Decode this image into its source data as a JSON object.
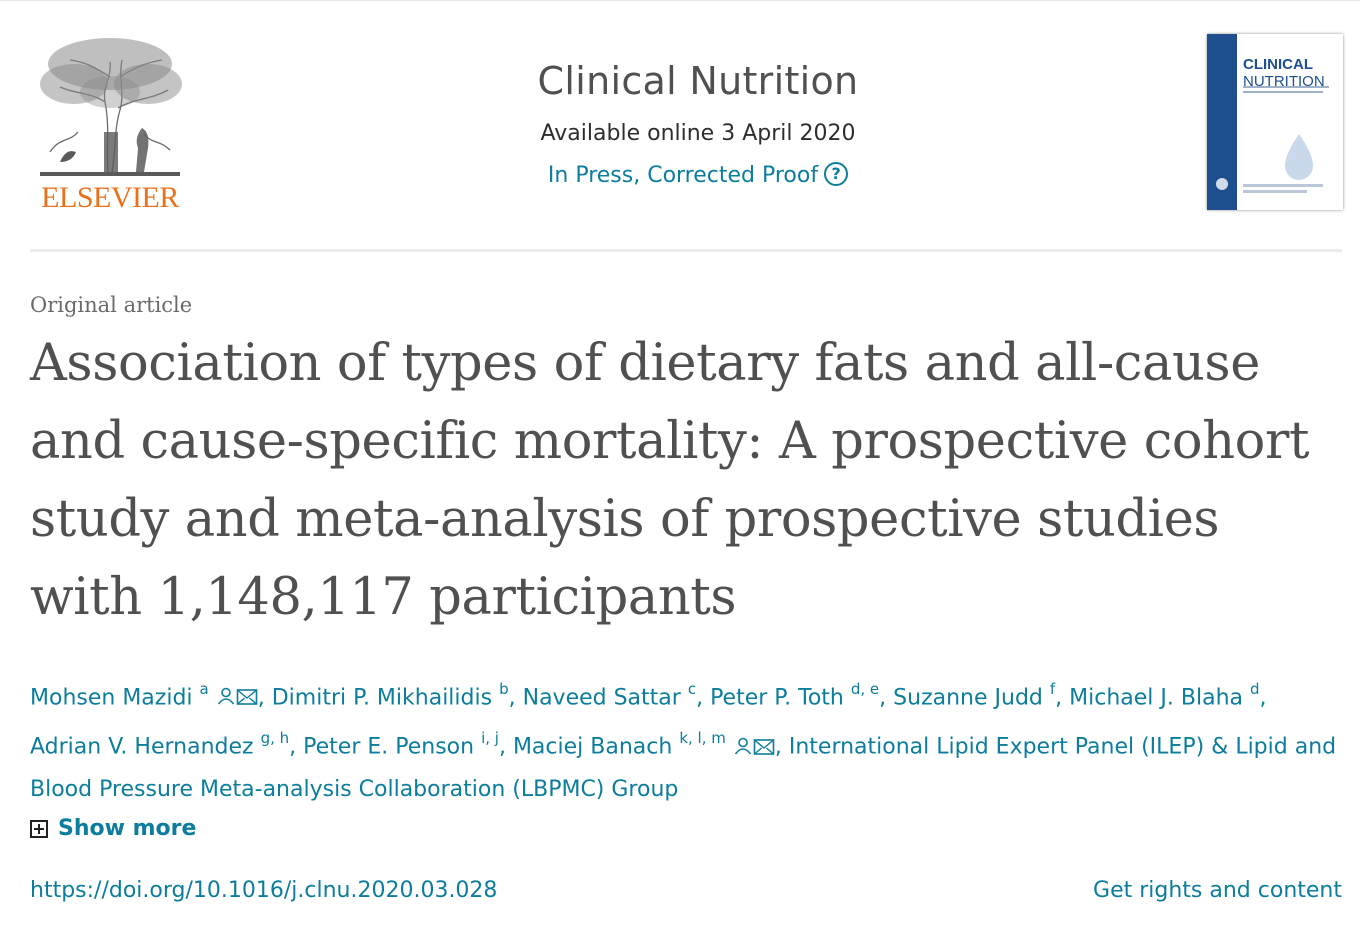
{
  "publisher": {
    "logo_text": "ELSEVIER",
    "logo_color": "#e9711c"
  },
  "journal": {
    "title": "Clinical Nutrition",
    "availability": "Available online 3 April 2020",
    "status": "In Press, Corrected Proof",
    "status_help_icon": "?",
    "cover_title_line1": "CLINICAL",
    "cover_title_line2": "NUTRITION",
    "cover_color": "#1d4f8f"
  },
  "article": {
    "type": "Original article",
    "title": "Association of types of dietary fats and all-cause and cause-specific mortality: A prospective cohort study and meta-analysis of prospective studies with 1,148,117 participants",
    "authors": [
      {
        "name": "Mohsen Mazidi",
        "sup": "a",
        "icons": true,
        "sep": ", "
      },
      {
        "name": "Dimitri P. Mikhailidis",
        "sup": "b",
        "icons": false,
        "sep": ", "
      },
      {
        "name": "Naveed Sattar",
        "sup": "c",
        "icons": false,
        "sep": ", "
      },
      {
        "name": "Peter P. Toth",
        "sup": "d, e",
        "icons": false,
        "sep": ", "
      },
      {
        "name": "Suzanne Judd",
        "sup": "f",
        "icons": false,
        "sep": ", "
      },
      {
        "name": "Michael J. Blaha",
        "sup": "d",
        "icons": false,
        "sep": ", "
      },
      {
        "name": "Adrian V. Hernandez",
        "sup": "g, h",
        "icons": false,
        "sep": ", "
      },
      {
        "name": "Peter E. Penson",
        "sup": "i, j",
        "icons": false,
        "sep": ", "
      },
      {
        "name": "Maciej Banach",
        "sup": "k, l, m",
        "icons": true,
        "sep": ", "
      },
      {
        "name": "International Lipid Expert Panel (ILEP) & Lipid and Blood Pressure Meta-analysis Collaboration (LBPMC) Group",
        "sup": "",
        "icons": false,
        "sep": ""
      }
    ],
    "show_more_label": "Show more",
    "doi": "https://doi.org/10.1016/j.clnu.2020.03.028",
    "rights_label": "Get rights and content",
    "link_color": "#0c7d9d"
  }
}
